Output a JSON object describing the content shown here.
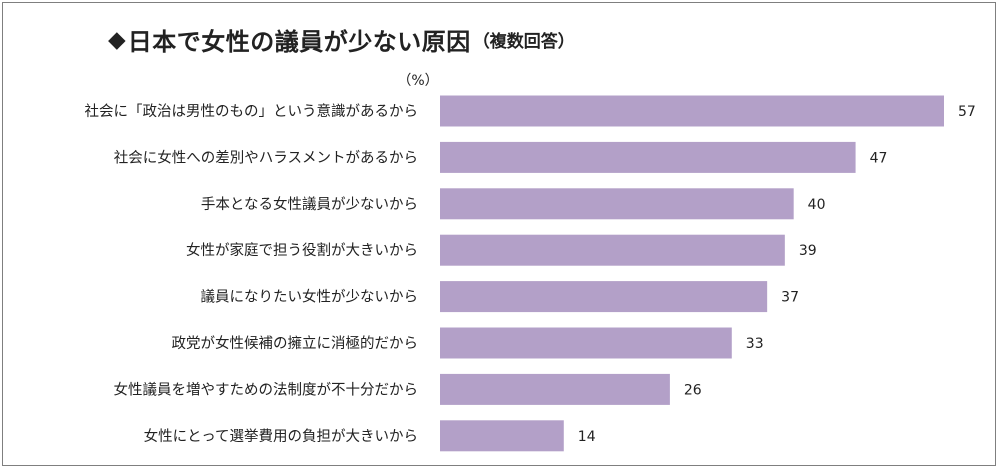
{
  "title": {
    "diamond": "◆",
    "main": "日本で女性の議員が少ない原因",
    "sub": "（複数回答）"
  },
  "chart_data": {
    "type": "bar",
    "orientation": "horizontal",
    "unit": "（%）",
    "categories": [
      "社会に「政治は男性のもの」という意識があるから",
      "社会に女性への差別やハラスメントがあるから",
      "手本となる女性議員が少ないから",
      "女性が家庭で担う役割が大きいから",
      "議員になりたい女性が少ないから",
      "政党が女性候補の擁立に消極的だから",
      "女性議員を増やすための法制度が不十分だから",
      "女性にとって選挙費用の負担が大きいから"
    ],
    "values": [
      57,
      47,
      40,
      39,
      37,
      33,
      26,
      14
    ],
    "xlim": [
      0,
      57
    ],
    "grid": false,
    "legend": "none",
    "bar_color": "#b3a0c8"
  }
}
